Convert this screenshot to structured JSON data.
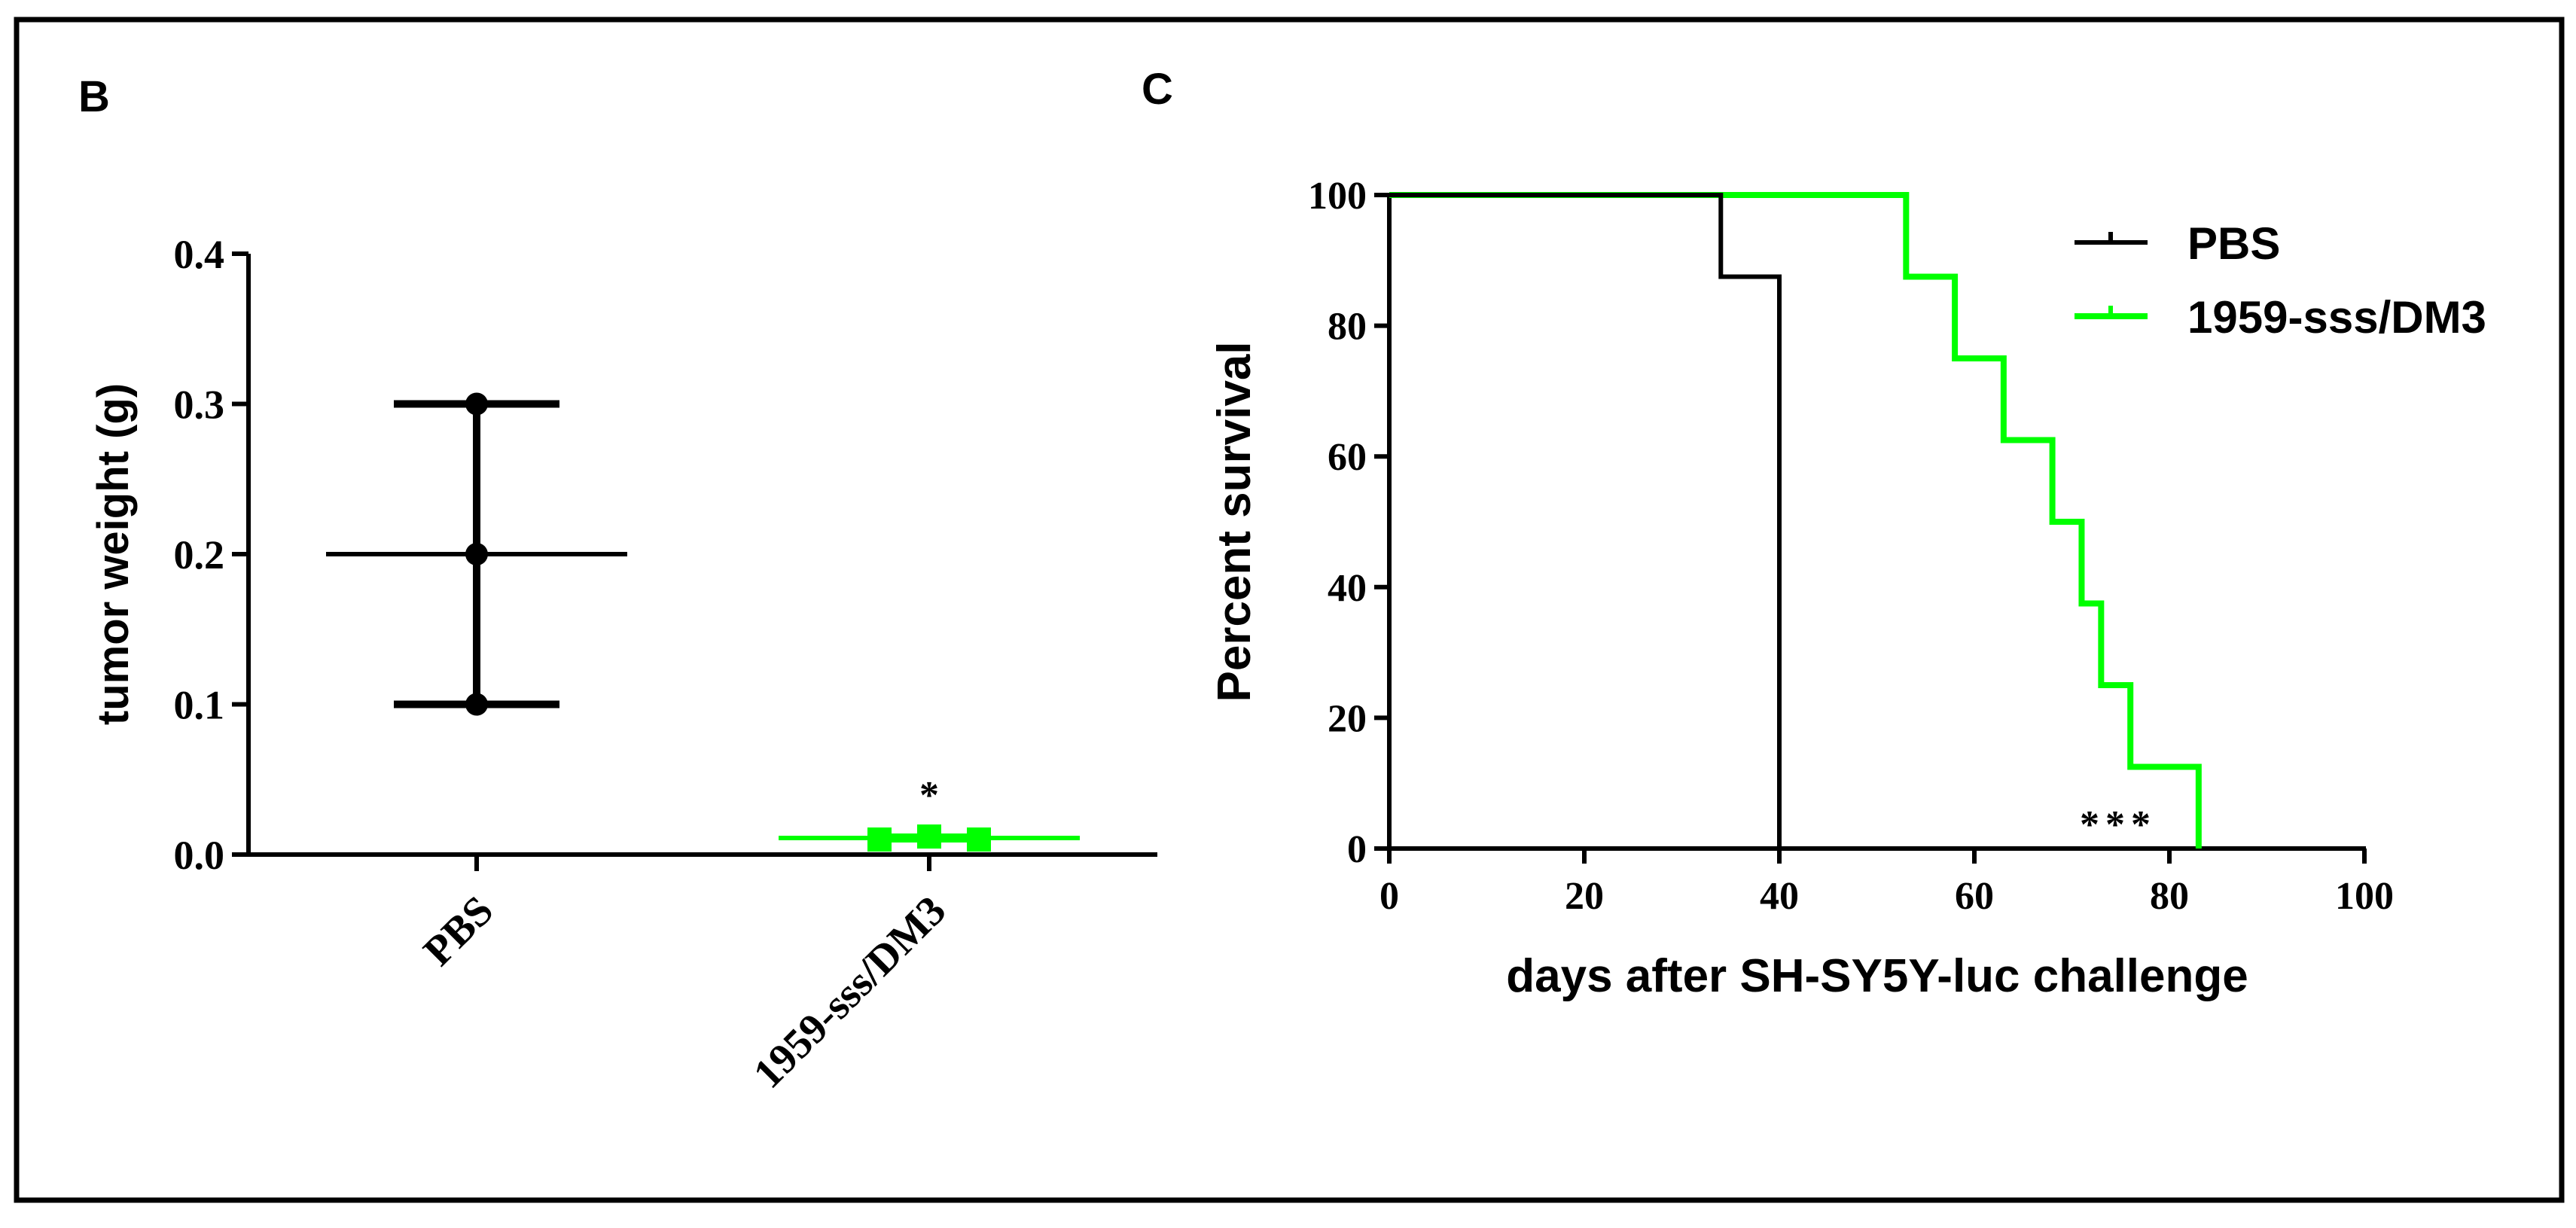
{
  "colors": {
    "black": "#000000",
    "green": "#00ff00"
  },
  "chart_data": [
    {
      "type": "scatter",
      "panel_label": "B",
      "title": "",
      "xlabel": "",
      "ylabel": "tumor weight (g)",
      "ylim": [
        0,
        0.4
      ],
      "y_ticks": [
        "0.0",
        "0.1",
        "0.2",
        "0.3",
        "0.4"
      ],
      "categories": [
        "PBS",
        "1959-sss/DM3"
      ],
      "series": [
        {
          "name": "PBS",
          "color": "#000000",
          "points": [
            0.3,
            0.2,
            0.1
          ],
          "mean": 0.2,
          "upper": 0.3,
          "lower": 0.1
        },
        {
          "name": "1959-sss/DM3",
          "color": "#00ff00",
          "points": [
            0.01,
            0.012,
            0.01
          ],
          "mean": 0.011,
          "upper": 0.012,
          "lower": 0.01,
          "annotation": "*"
        }
      ]
    },
    {
      "type": "line",
      "subtype": "kaplan-meier",
      "panel_label": "C",
      "title": "",
      "xlabel": "days after SH-SY5Y-luc challenge",
      "ylabel": "Percent survival",
      "xlim": [
        0,
        100
      ],
      "ylim": [
        0,
        100
      ],
      "x_ticks": [
        "0",
        "20",
        "40",
        "60",
        "80",
        "100"
      ],
      "y_ticks": [
        "0",
        "20",
        "40",
        "60",
        "80",
        "100"
      ],
      "legend": [
        "PBS",
        "1959-sss/DM3"
      ],
      "annotation": "***",
      "series": [
        {
          "name": "PBS",
          "color": "#000000",
          "x": [
            0,
            34,
            40
          ],
          "y": [
            100,
            87.5,
            0
          ]
        },
        {
          "name": "1959-sss/DM3",
          "color": "#00ff00",
          "x": [
            0,
            53,
            58,
            63,
            68,
            71,
            73,
            76,
            83
          ],
          "y": [
            100,
            87.5,
            75,
            62.5,
            50,
            37.5,
            25,
            12.5,
            0
          ]
        }
      ]
    }
  ]
}
